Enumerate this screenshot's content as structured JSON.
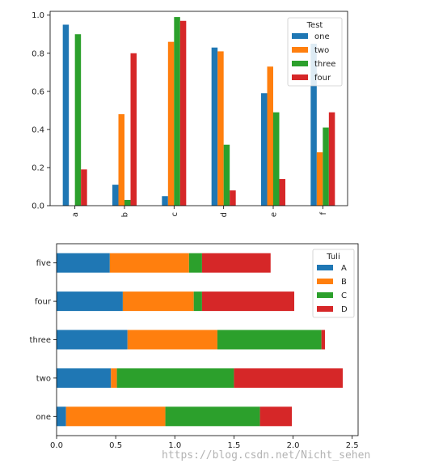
{
  "chart_data": [
    {
      "type": "bar",
      "orientation": "vertical",
      "categories": [
        "a",
        "b",
        "c",
        "d",
        "e",
        "f"
      ],
      "series": [
        {
          "name": "one",
          "color": "#1f77b4",
          "values": [
            0.95,
            0.11,
            0.05,
            0.83,
            0.59,
            0.85
          ]
        },
        {
          "name": "two",
          "color": "#ff7f0e",
          "values": [
            0.0,
            0.48,
            0.86,
            0.81,
            0.73,
            0.28
          ]
        },
        {
          "name": "three",
          "color": "#2ca02c",
          "values": [
            0.9,
            0.03,
            0.99,
            0.32,
            0.49,
            0.41
          ]
        },
        {
          "name": "four",
          "color": "#d62728",
          "values": [
            0.19,
            0.8,
            0.97,
            0.08,
            0.14,
            0.49
          ]
        }
      ],
      "ylim": [
        0,
        1.02
      ],
      "yticks": [
        0.0,
        0.2,
        0.4,
        0.6,
        0.8,
        1.0
      ],
      "ytick_labels": [
        "0.0",
        "0.2",
        "0.4",
        "0.6",
        "0.8",
        "1.0"
      ],
      "xtick_rotation": "vertical",
      "legend": {
        "title": "Test",
        "placement": "upper right"
      },
      "grid": false
    },
    {
      "type": "bar",
      "orientation": "horizontal",
      "stacked": true,
      "categories": [
        "one",
        "two",
        "three",
        "four",
        "five"
      ],
      "series": [
        {
          "name": "A",
          "color": "#1f77b4",
          "values": [
            0.08,
            0.46,
            0.6,
            0.56,
            0.45
          ]
        },
        {
          "name": "B",
          "color": "#ff7f0e",
          "values": [
            0.84,
            0.05,
            0.76,
            0.6,
            0.67
          ]
        },
        {
          "name": "C",
          "color": "#2ca02c",
          "values": [
            0.8,
            0.99,
            0.88,
            0.07,
            0.11
          ]
        },
        {
          "name": "D",
          "color": "#d62728",
          "values": [
            0.27,
            0.92,
            0.03,
            0.78,
            0.58
          ]
        }
      ],
      "xlim": [
        0,
        2.55
      ],
      "xticks": [
        0.0,
        0.5,
        1.0,
        1.5,
        2.0,
        2.5
      ],
      "xtick_labels": [
        "0.0",
        "0.5",
        "1.0",
        "1.5",
        "2.0",
        "2.5"
      ],
      "legend": {
        "title": "Tuli",
        "placement": "upper right"
      },
      "grid": false
    }
  ],
  "watermark": "https://blog.csdn.net/Nicht_sehen"
}
